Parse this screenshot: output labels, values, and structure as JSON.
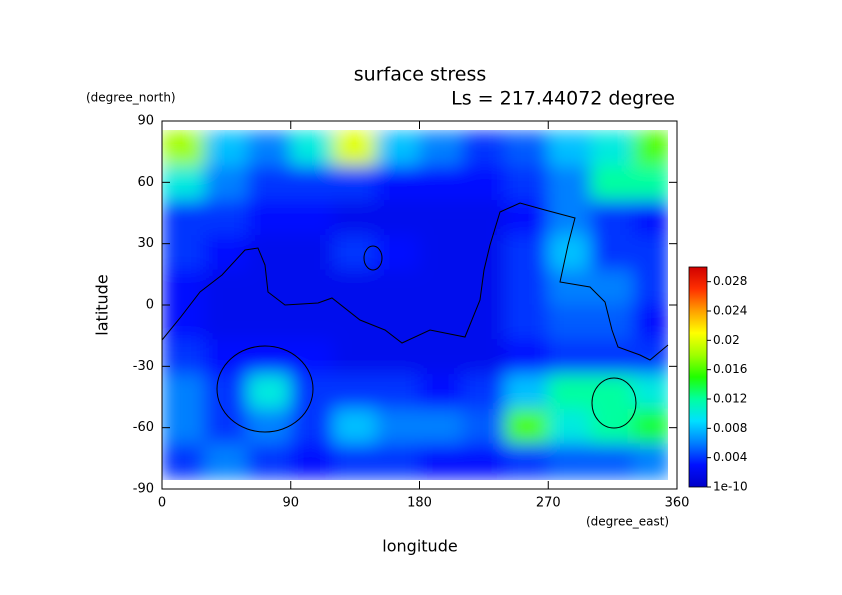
{
  "chart_data": {
    "type": "heatmap",
    "title": "surface stress",
    "subtitle": "Ls = 217.44072 degree",
    "xlabel": "longitude",
    "xunit": "(degree_east)",
    "ylabel": "latitude",
    "yunit": "(degree_north)",
    "xlim": [
      0,
      360
    ],
    "xticks": [
      0,
      90,
      180,
      270,
      360
    ],
    "ylim": [
      -90,
      90
    ],
    "yticks": [
      -90,
      -60,
      -30,
      0,
      30,
      60,
      90
    ],
    "x_edges": [
      0,
      30,
      60,
      90,
      120,
      150,
      180,
      210,
      240,
      270,
      300,
      330,
      355
    ],
    "y_edges": [
      85,
      68,
      51,
      34,
      17,
      0,
      -17,
      -34,
      -51,
      -68,
      -85
    ],
    "values": [
      [
        0.018,
        0.008,
        0.006,
        0.01,
        0.02,
        0.008,
        0.006,
        0.004,
        0.005,
        0.008,
        0.01,
        0.016
      ],
      [
        0.01,
        0.006,
        0.004,
        0.004,
        0.004,
        0.003,
        0.003,
        0.003,
        0.004,
        0.006,
        0.012,
        0.012
      ],
      [
        0.004,
        0.004,
        0.003,
        0.003,
        0.002,
        0.002,
        0.002,
        0.002,
        0.003,
        0.006,
        0.004,
        0.003
      ],
      [
        0.004,
        0.003,
        0.002,
        0.002,
        0.004,
        0.003,
        0.002,
        0.002,
        0.004,
        0.008,
        0.004,
        0.004
      ],
      [
        0.003,
        0.002,
        0.002,
        0.002,
        0.002,
        0.002,
        0.002,
        0.002,
        0.004,
        0.006,
        0.006,
        0.004
      ],
      [
        0.003,
        0.002,
        0.002,
        0.002,
        0.002,
        0.002,
        0.002,
        0.002,
        0.004,
        0.005,
        0.005,
        0.003
      ],
      [
        0.004,
        0.003,
        0.003,
        0.003,
        0.002,
        0.002,
        0.002,
        0.002,
        0.003,
        0.004,
        0.004,
        0.004
      ],
      [
        0.006,
        0.004,
        0.01,
        0.004,
        0.004,
        0.004,
        0.003,
        0.004,
        0.008,
        0.012,
        0.012,
        0.01
      ],
      [
        0.006,
        0.004,
        0.006,
        0.004,
        0.008,
        0.006,
        0.006,
        0.005,
        0.016,
        0.01,
        0.012,
        0.014
      ],
      [
        0.004,
        0.006,
        0.004,
        0.003,
        0.004,
        0.004,
        0.003,
        0.003,
        0.004,
        0.005,
        0.005,
        0.006
      ]
    ],
    "clim": [
      1e-10,
      0.03
    ],
    "cticks": [
      {
        "value": 1e-10,
        "label": "1e-10"
      },
      0.004,
      0.008,
      0.012,
      0.016,
      0.02,
      0.024,
      0.028
    ],
    "colors": [
      "#0000c8",
      "#0010ff",
      "#0080ff",
      "#00e0ff",
      "#00ffa0",
      "#20ff00",
      "#a0ff00",
      "#ffff00",
      "#ffa000",
      "#ff3000",
      "#d00000"
    ]
  }
}
